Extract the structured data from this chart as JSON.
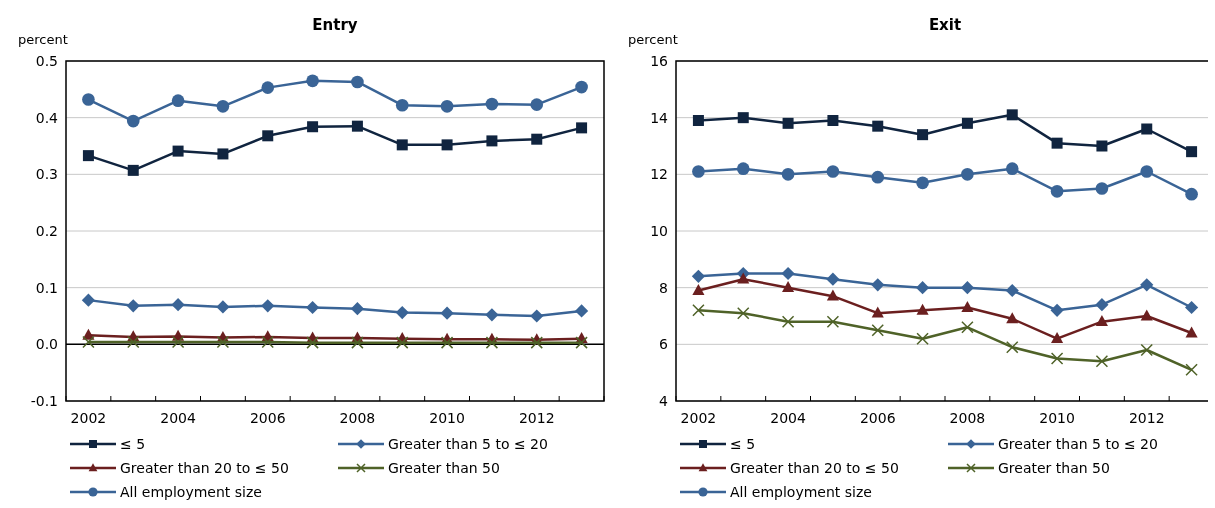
{
  "chart_data": [
    {
      "type": "line",
      "title": "Entry",
      "ylabel": "percent",
      "categories": [
        "2002",
        null,
        "2004",
        null,
        "2006",
        null,
        "2008",
        null,
        "2010",
        null,
        "2012",
        null
      ],
      "ylim": [
        -0.1,
        0.5
      ],
      "yticks": [
        {
          "value": -0.1,
          "label": "-0.1"
        },
        {
          "value": 0,
          "label": "0.0"
        },
        0.1,
        0.2,
        0.3,
        0.4,
        0.5
      ],
      "grid": "y",
      "legend": "bottom",
      "ref_lines": [
        {
          "axis": "y",
          "value": 0,
          "color": "#000000"
        }
      ],
      "series": [
        {
          "name": "≤ 5",
          "color": "#10243f",
          "marker": "square",
          "values": [
            0.333,
            0.307,
            0.341,
            0.336,
            0.368,
            0.384,
            0.385,
            0.352,
            0.352,
            0.359,
            0.362,
            0.382
          ]
        },
        {
          "name": "Greater than 5 to ≤ 20",
          "color": "#3a6496",
          "marker": "diamond",
          "values": [
            0.078,
            0.068,
            0.07,
            0.066,
            0.068,
            0.065,
            0.063,
            0.056,
            0.055,
            0.052,
            0.05,
            0.059
          ]
        },
        {
          "name": "Greater than 20 to ≤ 50",
          "color": "#6b1f1f",
          "marker": "triangle",
          "values": [
            0.016,
            0.013,
            0.014,
            0.012,
            0.013,
            0.011,
            0.011,
            0.01,
            0.009,
            0.009,
            0.008,
            0.01
          ]
        },
        {
          "name": "Greater than 50",
          "color": "#4f6228",
          "marker": "cross",
          "values": [
            0.004,
            0.004,
            0.004,
            0.004,
            0.004,
            0.003,
            0.003,
            0.003,
            0.003,
            0.003,
            0.003,
            0.003
          ]
        },
        {
          "name": "All employment size",
          "color": "#3a6496",
          "marker": "circle",
          "values": [
            0.432,
            0.394,
            0.43,
            0.42,
            0.453,
            0.465,
            0.463,
            0.422,
            0.42,
            0.424,
            0.423,
            0.454
          ]
        }
      ]
    },
    {
      "type": "line",
      "title": "Exit",
      "ylabel": "percent",
      "categories": [
        "2002",
        null,
        "2004",
        null,
        "2006",
        null,
        "2008",
        null,
        "2010",
        null,
        "2012",
        null
      ],
      "ylim": [
        4,
        16
      ],
      "yticks": [
        4,
        6,
        8,
        10,
        12,
        14,
        16
      ],
      "grid": "y",
      "legend": "bottom",
      "series": [
        {
          "name": "≤ 5",
          "color": "#10243f",
          "marker": "square",
          "values": [
            13.9,
            14.0,
            13.8,
            13.9,
            13.7,
            13.4,
            13.8,
            14.1,
            13.1,
            13.0,
            13.6,
            12.8
          ]
        },
        {
          "name": "Greater than 5 to ≤ 20",
          "color": "#3a6496",
          "marker": "diamond",
          "values": [
            8.4,
            8.5,
            8.5,
            8.3,
            8.1,
            8.0,
            8.0,
            7.9,
            7.2,
            7.4,
            8.1,
            7.3
          ]
        },
        {
          "name": "Greater than 20 to ≤ 50",
          "color": "#6b1f1f",
          "marker": "triangle",
          "values": [
            7.9,
            8.3,
            8.0,
            7.7,
            7.1,
            7.2,
            7.3,
            6.9,
            6.2,
            6.8,
            7.0,
            6.4
          ]
        },
        {
          "name": "Greater than 50",
          "color": "#4f6228",
          "marker": "cross",
          "values": [
            7.2,
            7.1,
            6.8,
            6.8,
            6.5,
            6.2,
            6.6,
            5.9,
            5.5,
            5.4,
            5.8,
            5.1
          ]
        },
        {
          "name": "All employment size",
          "color": "#3a6496",
          "marker": "circle",
          "values": [
            12.1,
            12.2,
            12.0,
            12.1,
            11.9,
            11.7,
            12.0,
            12.2,
            11.4,
            11.5,
            12.1,
            11.3
          ]
        }
      ]
    }
  ]
}
